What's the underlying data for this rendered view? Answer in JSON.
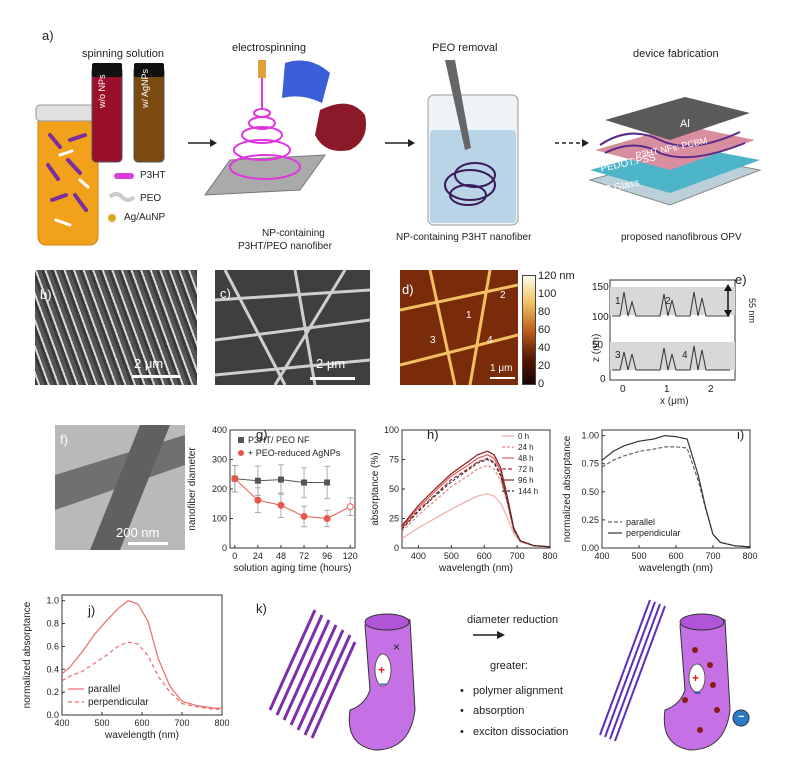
{
  "panel_a": {
    "label": "a)",
    "titles": {
      "spinning": "spinning solution",
      "electro": "electrospinning",
      "peo": "PEO removal",
      "device": "device fabrication"
    },
    "vial_left": "w/o NPs",
    "vial_right": "w/ AgNPs",
    "legend": {
      "p3ht": "P3HT",
      "peo": "PEO",
      "np": "Ag/AuNP"
    },
    "caption_electro_line1": "NP-containing",
    "caption_electro_line2": "P3HT/PEO nanofiber",
    "caption_peo": "NP-containing P3HT nanofiber",
    "caption_device": "proposed nanofibrous OPV",
    "device_layers": {
      "al": "Al",
      "active": "P3HT NFs: PCBM",
      "pedot": "PEDOT:PSS",
      "ito": "ITO Glass"
    }
  },
  "panel_b": {
    "label": "b)",
    "scale": "2 μm"
  },
  "panel_c": {
    "label": "c)",
    "scale": "2 μm"
  },
  "panel_d": {
    "label": "d)",
    "scale": "1 μm",
    "colorbar_ticks": [
      "120 nm",
      "100",
      "80",
      "60",
      "40",
      "20",
      "0"
    ],
    "markers": [
      "1",
      "2",
      "3",
      "4"
    ]
  },
  "panel_e": {
    "label": "e)",
    "ylabel": "z (nm)",
    "xlabel": "x (μm)",
    "yticks": [
      "0",
      "50",
      "100",
      "150"
    ],
    "xticks": [
      "0",
      "1",
      "2"
    ],
    "annot": "55 nm",
    "peaks": [
      "1",
      "2",
      "3",
      "4"
    ]
  },
  "panel_f": {
    "label": "f)",
    "scale": "200 nm"
  },
  "panel_g": {
    "label": "g)",
    "ylabel": "nanofiber diameter",
    "xlabel": "solution aging time (hours)"
  },
  "panel_h": {
    "label": "h)",
    "ylabel": "absorptance (%)",
    "xlabel": "wavelength (nm)"
  },
  "panel_i": {
    "label": "i)",
    "ylabel": "normalized absorptance",
    "xlabel": "wavelength (nm)"
  },
  "panel_j": {
    "label": "j)",
    "ylabel": "normalized absorptance",
    "xlabel": "wavelength (nm)"
  },
  "panel_k": {
    "label": "k)",
    "arrow_label": "diameter reduction",
    "greater": "greater:",
    "bullets": [
      "polymer alignment",
      "absorption",
      "exciton dissociation"
    ],
    "plus": "+",
    "minus": "−",
    "cross": "×"
  },
  "chart_data": [
    {
      "type": "scatter",
      "panel": "g",
      "ylabel": "nanofiber diameter",
      "xlabel": "solution aging time (hours)",
      "xlim": [
        -5,
        125
      ],
      "ylim": [
        0,
        400
      ],
      "xticks": [
        0,
        24,
        48,
        72,
        96,
        120
      ],
      "yticks": [
        0,
        100,
        200,
        300,
        400
      ],
      "legend": "top-right",
      "series": [
        {
          "name": "P3HT/ PEO NF",
          "color": "#555555",
          "x": [
            0,
            24,
            48,
            72,
            96
          ],
          "y": [
            235,
            228,
            232,
            222,
            222
          ],
          "err": [
            45,
            50,
            50,
            50,
            55
          ]
        },
        {
          "name": "+ PEO-reduced AgNPs",
          "color": "#e8574e",
          "x": [
            0,
            24,
            48,
            72,
            96,
            120
          ],
          "y": [
            235,
            162,
            145,
            107,
            100,
            140
          ],
          "err": [
            45,
            42,
            42,
            35,
            28,
            30
          ],
          "open_last": true
        }
      ]
    },
    {
      "type": "line",
      "panel": "h",
      "ylabel": "absorptance (%)",
      "xlabel": "wavelength (nm)",
      "xlim": [
        350,
        800
      ],
      "ylim": [
        0,
        100
      ],
      "xticks": [
        400,
        500,
        600,
        700,
        800
      ],
      "yticks": [
        0,
        25,
        50,
        75,
        100
      ],
      "legend": "top-right",
      "x": [
        350,
        400,
        450,
        500,
        550,
        580,
        610,
        630,
        650,
        670,
        690,
        710,
        750,
        800
      ],
      "series": [
        {
          "name": "0 h",
          "color": "#f4a8a8",
          "dash": "",
          "values": [
            8,
            17,
            25,
            33,
            40,
            44,
            46,
            44,
            38,
            26,
            12,
            5,
            2,
            1
          ]
        },
        {
          "name": "24 h",
          "color": "#ee8080",
          "dash": "3,2",
          "values": [
            14,
            28,
            40,
            52,
            61,
            67,
            70,
            67,
            57,
            38,
            15,
            6,
            2,
            1
          ]
        },
        {
          "name": "48 h",
          "color": "#e45a5a",
          "dash": "",
          "values": [
            18,
            34,
            48,
            61,
            70,
            76,
            79,
            76,
            65,
            42,
            16,
            6,
            2,
            1
          ]
        },
        {
          "name": "72 h",
          "color": "#b83030",
          "dash": "4,2",
          "values": [
            17,
            32,
            45,
            58,
            67,
            73,
            76,
            73,
            62,
            41,
            16,
            6,
            2,
            1
          ]
        },
        {
          "name": "96 h",
          "color": "#8a1f1f",
          "dash": "",
          "values": [
            19,
            36,
            50,
            63,
            73,
            79,
            82,
            79,
            68,
            44,
            17,
            6,
            2,
            1
          ]
        },
        {
          "name": "144 h",
          "color": "#333333",
          "dash": "3,2",
          "values": [
            16,
            31,
            44,
            56,
            66,
            72,
            75,
            72,
            61,
            40,
            15,
            6,
            2,
            1
          ]
        }
      ]
    },
    {
      "type": "line",
      "panel": "i",
      "ylabel": "normalized absorptance",
      "xlabel": "wavelength (nm)",
      "xlim": [
        400,
        800
      ],
      "ylim": [
        0,
        1.05
      ],
      "xticks": [
        400,
        500,
        600,
        700,
        800
      ],
      "yticks": [
        0.0,
        0.25,
        0.5,
        0.75,
        1.0
      ],
      "legend": "bottom-left",
      "x": [
        400,
        430,
        460,
        500,
        540,
        570,
        600,
        630,
        660,
        680,
        700,
        720,
        760,
        800
      ],
      "series": [
        {
          "name": "parallel",
          "color": "#666666",
          "dash": "4,2",
          "values": [
            0.72,
            0.78,
            0.82,
            0.86,
            0.88,
            0.9,
            0.9,
            0.89,
            0.6,
            0.35,
            0.12,
            0.05,
            0.02,
            0.01
          ]
        },
        {
          "name": "perpendicular",
          "color": "#333333",
          "dash": "",
          "values": [
            0.78,
            0.86,
            0.91,
            0.95,
            0.97,
            1.0,
            0.99,
            0.97,
            0.65,
            0.36,
            0.12,
            0.05,
            0.02,
            0.01
          ]
        }
      ]
    },
    {
      "type": "line",
      "panel": "j",
      "ylabel": "normalized absorptance",
      "xlabel": "wavelength (nm)",
      "xlim": [
        400,
        800
      ],
      "ylim": [
        0,
        1.05
      ],
      "xticks": [
        400,
        500,
        600,
        700,
        800
      ],
      "yticks": [
        0.0,
        0.2,
        0.4,
        0.6,
        0.8,
        1.0
      ],
      "legend": "bottom-left",
      "x": [
        400,
        420,
        450,
        480,
        510,
        540,
        565,
        590,
        615,
        640,
        670,
        700,
        740,
        780,
        800
      ],
      "series": [
        {
          "name": "parallel",
          "color": "#ef6b6b",
          "dash": "",
          "values": [
            0.36,
            0.42,
            0.55,
            0.7,
            0.82,
            0.93,
            1.0,
            0.97,
            0.82,
            0.5,
            0.25,
            0.12,
            0.08,
            0.06,
            0.06
          ]
        },
        {
          "name": "perpendicular",
          "color": "#ef6b6b",
          "dash": "4,3",
          "values": [
            0.3,
            0.34,
            0.38,
            0.45,
            0.52,
            0.6,
            0.64,
            0.62,
            0.52,
            0.34,
            0.2,
            0.1,
            0.07,
            0.05,
            0.05
          ]
        }
      ]
    }
  ]
}
